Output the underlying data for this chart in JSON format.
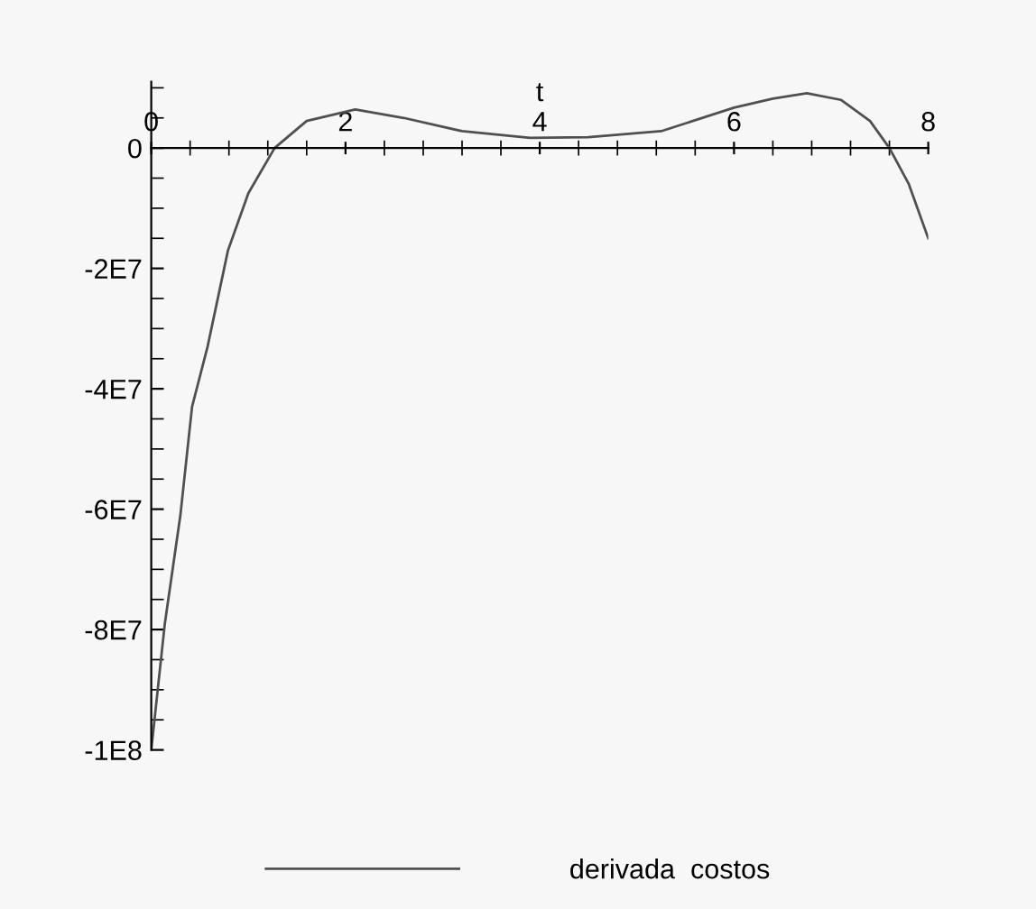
{
  "chart_data": {
    "type": "line",
    "xlabel": "t",
    "xlim": [
      0,
      8
    ],
    "xticks": [
      0,
      2,
      4,
      6,
      8
    ],
    "ylim": [
      -100000000,
      11000000
    ],
    "yticks": [
      {
        "value": -100000000,
        "label": "-1E8"
      },
      {
        "value": -80000000,
        "label": "-8E7"
      },
      {
        "value": -60000000,
        "label": "-6E7"
      },
      {
        "value": -40000000,
        "label": "-4E7"
      },
      {
        "value": -20000000,
        "label": "-2E7"
      },
      0
    ],
    "series": [
      {
        "name": "derivada  costos",
        "color": "#505050",
        "x": [
          0,
          0.04,
          0.14,
          0.3,
          0.42,
          0.58,
          0.79,
          1.0,
          1.27,
          1.6,
          2.1,
          2.6,
          3.2,
          3.9,
          4.5,
          5.25,
          6.0,
          6.4,
          6.75,
          7.1,
          7.4,
          7.6,
          7.8,
          8.0
        ],
        "values": [
          -100000000,
          -94000000,
          -79000000,
          -61000000,
          -43000000,
          -33000000,
          -17000000,
          -7500000,
          0,
          4500000,
          6400000,
          5000000,
          2800000,
          1700000,
          1800000,
          2800000,
          6700000,
          8200000,
          9100000,
          8000000,
          4500000,
          0,
          -6000000,
          -15000000
        ]
      }
    ],
    "legend": "bottom",
    "grid": false
  }
}
